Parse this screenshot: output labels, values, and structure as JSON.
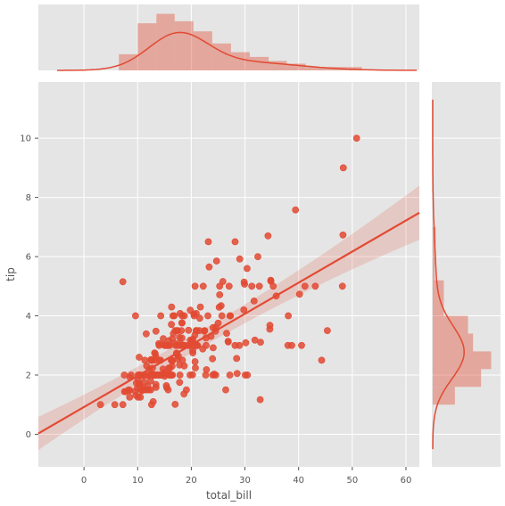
{
  "chart_data": {
    "type": "scatter",
    "subtype": "jointplot with regression line, histograms and KDE",
    "xlabel": "total_bill",
    "ylabel": "tip",
    "xlim": [
      -8.5,
      62.5
    ],
    "ylim": [
      -1.1,
      11.9
    ],
    "xticks": [
      0,
      10,
      20,
      30,
      40,
      50,
      60
    ],
    "yticks": [
      0,
      2,
      4,
      6,
      8,
      10
    ],
    "grid": true,
    "colors": {
      "marker": "#e24a33",
      "hist": "#e24a33",
      "background": "#e5e5e5",
      "grid": "#ffffff"
    },
    "regression": {
      "intercept": 0.92,
      "slope": 0.105,
      "ci": true
    },
    "points": [
      [
        16.99,
        1.01
      ],
      [
        10.34,
        1.66
      ],
      [
        21.01,
        3.5
      ],
      [
        23.68,
        3.31
      ],
      [
        24.59,
        3.61
      ],
      [
        25.29,
        4.71
      ],
      [
        8.77,
        2.0
      ],
      [
        26.88,
        3.12
      ],
      [
        15.04,
        1.96
      ],
      [
        14.78,
        3.23
      ],
      [
        10.27,
        1.71
      ],
      [
        35.26,
        5.0
      ],
      [
        15.42,
        1.57
      ],
      [
        18.43,
        3.0
      ],
      [
        14.83,
        3.02
      ],
      [
        21.58,
        3.92
      ],
      [
        10.33,
        1.67
      ],
      [
        16.29,
        3.71
      ],
      [
        16.97,
        3.5
      ],
      [
        20.65,
        3.35
      ],
      [
        17.92,
        4.08
      ],
      [
        20.29,
        2.75
      ],
      [
        15.77,
        2.23
      ],
      [
        39.42,
        7.58
      ],
      [
        19.82,
        3.18
      ],
      [
        17.81,
        2.34
      ],
      [
        13.37,
        2.0
      ],
      [
        12.69,
        2.0
      ],
      [
        21.7,
        4.3
      ],
      [
        19.65,
        3.0
      ],
      [
        9.55,
        1.45
      ],
      [
        18.35,
        2.5
      ],
      [
        15.06,
        3.0
      ],
      [
        20.69,
        2.45
      ],
      [
        17.78,
        3.27
      ],
      [
        24.06,
        3.6
      ],
      [
        16.31,
        2.0
      ],
      [
        16.93,
        3.07
      ],
      [
        18.69,
        2.31
      ],
      [
        31.27,
        5.0
      ],
      [
        16.04,
        2.24
      ],
      [
        17.46,
        2.54
      ],
      [
        13.94,
        3.06
      ],
      [
        9.68,
        1.32
      ],
      [
        30.4,
        5.6
      ],
      [
        18.29,
        3.0
      ],
      [
        22.23,
        5.0
      ],
      [
        32.4,
        6.0
      ],
      [
        28.55,
        2.05
      ],
      [
        18.04,
        3.0
      ],
      [
        12.54,
        2.5
      ],
      [
        10.29,
        2.6
      ],
      [
        34.81,
        5.2
      ],
      [
        9.94,
        1.56
      ],
      [
        25.56,
        4.34
      ],
      [
        19.49,
        3.51
      ],
      [
        38.01,
        3.0
      ],
      [
        26.41,
        1.5
      ],
      [
        11.24,
        1.76
      ],
      [
        48.27,
        6.73
      ],
      [
        20.29,
        3.21
      ],
      [
        13.81,
        2.0
      ],
      [
        11.02,
        1.98
      ],
      [
        18.29,
        3.76
      ],
      [
        17.59,
        2.64
      ],
      [
        20.08,
        3.15
      ],
      [
        16.45,
        2.47
      ],
      [
        3.07,
        1.0
      ],
      [
        20.23,
        2.01
      ],
      [
        15.01,
        2.09
      ],
      [
        12.02,
        1.97
      ],
      [
        17.07,
        3.0
      ],
      [
        26.86,
        3.14
      ],
      [
        25.28,
        5.0
      ],
      [
        14.73,
        2.2
      ],
      [
        10.51,
        1.25
      ],
      [
        17.92,
        3.08
      ],
      [
        27.2,
        4.0
      ],
      [
        22.76,
        3.0
      ],
      [
        17.29,
        2.71
      ],
      [
        19.44,
        3.0
      ],
      [
        16.66,
        3.4
      ],
      [
        10.07,
        1.83
      ],
      [
        32.68,
        5.0
      ],
      [
        15.98,
        2.03
      ],
      [
        34.83,
        5.17
      ],
      [
        13.03,
        2.0
      ],
      [
        18.28,
        4.0
      ],
      [
        24.71,
        5.85
      ],
      [
        21.16,
        3.0
      ],
      [
        28.97,
        3.0
      ],
      [
        22.49,
        3.5
      ],
      [
        5.75,
        1.0
      ],
      [
        16.32,
        4.3
      ],
      [
        22.75,
        3.25
      ],
      [
        40.17,
        4.73
      ],
      [
        27.28,
        4.0
      ],
      [
        12.03,
        1.5
      ],
      [
        21.01,
        3.0
      ],
      [
        12.46,
        1.5
      ],
      [
        11.35,
        2.5
      ],
      [
        15.38,
        3.0
      ],
      [
        44.3,
        2.5
      ],
      [
        22.42,
        3.48
      ],
      [
        20.92,
        4.08
      ],
      [
        15.36,
        1.64
      ],
      [
        20.49,
        4.06
      ],
      [
        25.21,
        4.29
      ],
      [
        18.24,
        3.76
      ],
      [
        14.31,
        4.0
      ],
      [
        14.0,
        3.0
      ],
      [
        7.25,
        1.0
      ],
      [
        38.07,
        4.0
      ],
      [
        23.95,
        2.55
      ],
      [
        25.71,
        4.0
      ],
      [
        17.31,
        3.5
      ],
      [
        29.93,
        5.07
      ],
      [
        10.65,
        1.5
      ],
      [
        12.43,
        1.8
      ],
      [
        24.08,
        2.92
      ],
      [
        11.69,
        2.31
      ],
      [
        13.42,
        1.68
      ],
      [
        14.26,
        2.5
      ],
      [
        15.95,
        2.0
      ],
      [
        12.48,
        2.52
      ],
      [
        29.8,
        4.2
      ],
      [
        8.52,
        1.48
      ],
      [
        14.52,
        2.0
      ],
      [
        11.38,
        2.0
      ],
      [
        22.82,
        2.18
      ],
      [
        19.08,
        1.5
      ],
      [
        20.27,
        2.83
      ],
      [
        11.17,
        1.5
      ],
      [
        12.26,
        2.0
      ],
      [
        18.26,
        3.25
      ],
      [
        8.51,
        1.25
      ],
      [
        10.33,
        2.0
      ],
      [
        14.15,
        2.0
      ],
      [
        16.0,
        2.0
      ],
      [
        13.16,
        2.75
      ],
      [
        17.47,
        3.5
      ],
      [
        34.3,
        6.7
      ],
      [
        41.19,
        5.0
      ],
      [
        27.05,
        5.0
      ],
      [
        16.43,
        2.3
      ],
      [
        8.35,
        1.5
      ],
      [
        18.64,
        1.36
      ],
      [
        11.87,
        1.63
      ],
      [
        9.78,
        1.73
      ],
      [
        7.51,
        2.0
      ],
      [
        14.07,
        2.5
      ],
      [
        13.13,
        2.0
      ],
      [
        17.26,
        2.74
      ],
      [
        24.55,
        2.0
      ],
      [
        19.77,
        2.0
      ],
      [
        29.85,
        5.14
      ],
      [
        48.17,
        5.0
      ],
      [
        25.0,
        3.75
      ],
      [
        13.39,
        2.61
      ],
      [
        16.49,
        2.0
      ],
      [
        21.5,
        3.5
      ],
      [
        12.66,
        2.5
      ],
      [
        16.21,
        2.0
      ],
      [
        13.81,
        2.0
      ],
      [
        17.51,
        3.0
      ],
      [
        24.52,
        3.48
      ],
      [
        20.76,
        2.24
      ],
      [
        31.71,
        4.5
      ],
      [
        10.59,
        1.61
      ],
      [
        10.63,
        2.0
      ],
      [
        50.81,
        10.0
      ],
      [
        15.81,
        3.16
      ],
      [
        7.25,
        5.15
      ],
      [
        31.85,
        3.18
      ],
      [
        16.82,
        4.0
      ],
      [
        32.9,
        3.11
      ],
      [
        17.89,
        2.0
      ],
      [
        14.48,
        2.0
      ],
      [
        9.6,
        4.0
      ],
      [
        34.63,
        3.55
      ],
      [
        34.65,
        3.68
      ],
      [
        23.33,
        5.65
      ],
      [
        45.35,
        3.5
      ],
      [
        23.17,
        6.5
      ],
      [
        40.55,
        3.0
      ],
      [
        20.69,
        5.0
      ],
      [
        20.9,
        3.5
      ],
      [
        30.46,
        2.0
      ],
      [
        18.15,
        3.5
      ],
      [
        23.1,
        4.0
      ],
      [
        15.69,
        1.5
      ],
      [
        19.81,
        4.19
      ],
      [
        28.44,
        2.56
      ],
      [
        15.48,
        2.02
      ],
      [
        16.58,
        4.0
      ],
      [
        7.56,
        1.44
      ],
      [
        10.34,
        2.0
      ],
      [
        43.11,
        5.0
      ],
      [
        13.0,
        2.0
      ],
      [
        13.51,
        2.0
      ],
      [
        18.71,
        4.0
      ],
      [
        12.74,
        2.01
      ],
      [
        13.0,
        2.0
      ],
      [
        16.4,
        2.5
      ],
      [
        20.53,
        4.0
      ],
      [
        16.47,
        3.23
      ],
      [
        26.59,
        3.41
      ],
      [
        38.73,
        3.0
      ],
      [
        24.27,
        2.03
      ],
      [
        12.76,
        2.23
      ],
      [
        30.06,
        2.0
      ],
      [
        25.89,
        5.16
      ],
      [
        48.33,
        9.0
      ],
      [
        13.27,
        2.5
      ],
      [
        28.17,
        6.5
      ],
      [
        12.9,
        1.1
      ],
      [
        28.15,
        3.0
      ],
      [
        11.59,
        1.5
      ],
      [
        7.74,
        1.44
      ],
      [
        30.14,
        3.09
      ],
      [
        12.16,
        2.2
      ],
      [
        13.42,
        3.48
      ],
      [
        8.58,
        1.92
      ],
      [
        15.98,
        3.0
      ],
      [
        13.42,
        1.58
      ],
      [
        16.27,
        2.5
      ],
      [
        10.09,
        2.0
      ],
      [
        20.45,
        3.0
      ],
      [
        13.28,
        2.72
      ],
      [
        22.12,
        2.88
      ],
      [
        24.01,
        2.0
      ],
      [
        15.69,
        3.0
      ],
      [
        11.61,
        3.39
      ],
      [
        10.77,
        1.47
      ],
      [
        15.53,
        3.0
      ],
      [
        10.07,
        1.25
      ],
      [
        12.6,
        1.0
      ],
      [
        32.83,
        1.17
      ],
      [
        35.83,
        4.67
      ],
      [
        29.03,
        5.92
      ],
      [
        27.18,
        2.0
      ],
      [
        22.67,
        2.0
      ],
      [
        17.82,
        1.75
      ],
      [
        18.78,
        3.0
      ]
    ],
    "x_hist": {
      "bins": [
        [
          6.5,
          10.0
        ],
        [
          10.0,
          13.5
        ],
        [
          13.5,
          16.9
        ],
        [
          16.9,
          20.4
        ],
        [
          20.4,
          23.9
        ],
        [
          23.9,
          27.4
        ],
        [
          27.4,
          30.9
        ],
        [
          30.9,
          34.4
        ],
        [
          34.4,
          37.8
        ],
        [
          37.8,
          41.3
        ],
        [
          41.3,
          44.8
        ],
        [
          44.8,
          48.3
        ],
        [
          48.3,
          51.8
        ]
      ],
      "density": [
        0.024,
        0.07,
        0.084,
        0.073,
        0.058,
        0.04,
        0.027,
        0.02,
        0.014,
        0.01,
        0.005,
        0.005,
        0.005
      ]
    },
    "y_hist": {
      "bins": [
        [
          1.0,
          1.6
        ],
        [
          1.6,
          2.2
        ],
        [
          2.2,
          2.8
        ],
        [
          2.8,
          3.4
        ],
        [
          3.4,
          4.0
        ],
        [
          4.0,
          4.6
        ],
        [
          4.6,
          5.2
        ],
        [
          5.2,
          5.8
        ],
        [
          5.8,
          6.4
        ],
        [
          6.4,
          7.0
        ],
        [
          7.0,
          7.6
        ]
      ],
      "density": [
        0.22,
        0.48,
        0.58,
        0.4,
        0.35,
        0.11,
        0.11,
        0.02,
        0.02,
        0.03,
        0.0
      ]
    },
    "kde_x": {
      "mean": 17.5,
      "sd": 5.5,
      "tail_mean": 30,
      "tail_sd": 10,
      "weight": 0.3
    },
    "kde_y": {
      "mean": 2.75,
      "sd": 0.9,
      "tail_mean": 5,
      "tail_sd": 1.5,
      "weight": 0.15
    }
  }
}
